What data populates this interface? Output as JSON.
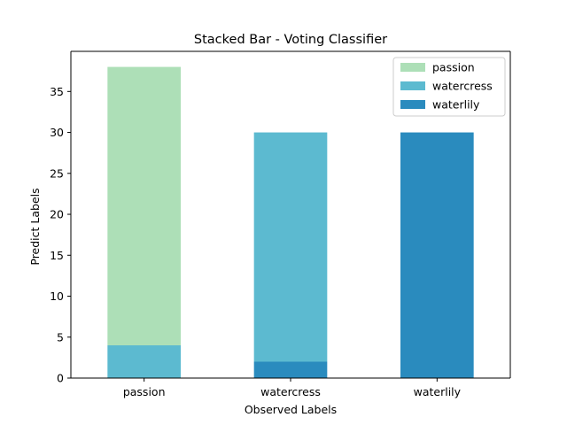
{
  "chart_data": {
    "type": "bar",
    "stacked": true,
    "title": "Stacked Bar - Voting Classifier",
    "xlabel": "Observed Labels",
    "ylabel": "Predict Labels",
    "categories": [
      "passion",
      "watercress",
      "waterlily"
    ],
    "ylim": [
      0,
      39.9
    ],
    "yticks": [
      0,
      5,
      10,
      15,
      20,
      25,
      30,
      35
    ],
    "grid": false,
    "legend_position": "top-right",
    "series": [
      {
        "name": "passion",
        "color": "#addfb7",
        "values": [
          34,
          0,
          0
        ]
      },
      {
        "name": "watercress",
        "color": "#5cbad0",
        "values": [
          4,
          28,
          0
        ]
      },
      {
        "name": "waterlily",
        "color": "#2a8bbe",
        "values": [
          0,
          2,
          30
        ]
      }
    ],
    "stack_order": [
      "waterlily",
      "watercress",
      "passion"
    ]
  }
}
